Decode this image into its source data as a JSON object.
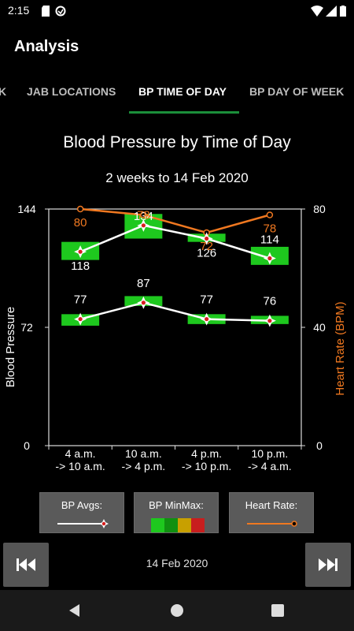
{
  "status_bar": {
    "time": "2:15"
  },
  "app_bar": {
    "title": "Analysis"
  },
  "tabs": [
    {
      "label": "K"
    },
    {
      "label": "JAB LOCATIONS"
    },
    {
      "label": "BP TIME OF DAY"
    },
    {
      "label": "BP DAY OF WEEK"
    }
  ],
  "colors": {
    "accent": "#1b8f3a",
    "heart_rate": "#f07820",
    "avg_line": "#ffffff",
    "bar_green": "#1ec81e",
    "bar_dark_green": "#109010",
    "bar_gold": "#c8a000",
    "bar_red": "#c81e1e"
  },
  "chart_data": {
    "type": "line",
    "title": "Blood Pressure by Time of Day",
    "subtitle": "2 weeks to 14 Feb 2020",
    "categories": [
      [
        "4 a.m.",
        "-> 10 a.m."
      ],
      [
        "10 a.m.",
        "-> 4 p.m."
      ],
      [
        "4 p.m.",
        "-> 10 p.m."
      ],
      [
        "10 p.m.",
        "-> 4 a.m."
      ]
    ],
    "ylabel": "Blood Pressure",
    "y2label": "Heart Rate (BPM)",
    "ylim": [
      0,
      144
    ],
    "y2lim": [
      0,
      80
    ],
    "yticks": [
      "0",
      "72",
      "144"
    ],
    "y2ticks": [
      "0",
      "40",
      "80"
    ],
    "systolic": {
      "avg": [
        118,
        134,
        126,
        114
      ],
      "min": [
        113,
        126,
        124,
        110
      ],
      "max": [
        124,
        141,
        129,
        121
      ]
    },
    "diastolic": {
      "avg": [
        77,
        87,
        77,
        76
      ],
      "min": [
        73,
        85,
        74,
        74
      ],
      "max": [
        80,
        91,
        80,
        79
      ]
    },
    "heart_rate": {
      "values": [
        80,
        78,
        72,
        78
      ]
    }
  },
  "legend": {
    "bp_avgs": "BP Avgs:",
    "bp_minmax": "BP MinMax:",
    "heart_rate": "Heart Rate:"
  },
  "footer": {
    "date": "14 Feb 2020"
  }
}
